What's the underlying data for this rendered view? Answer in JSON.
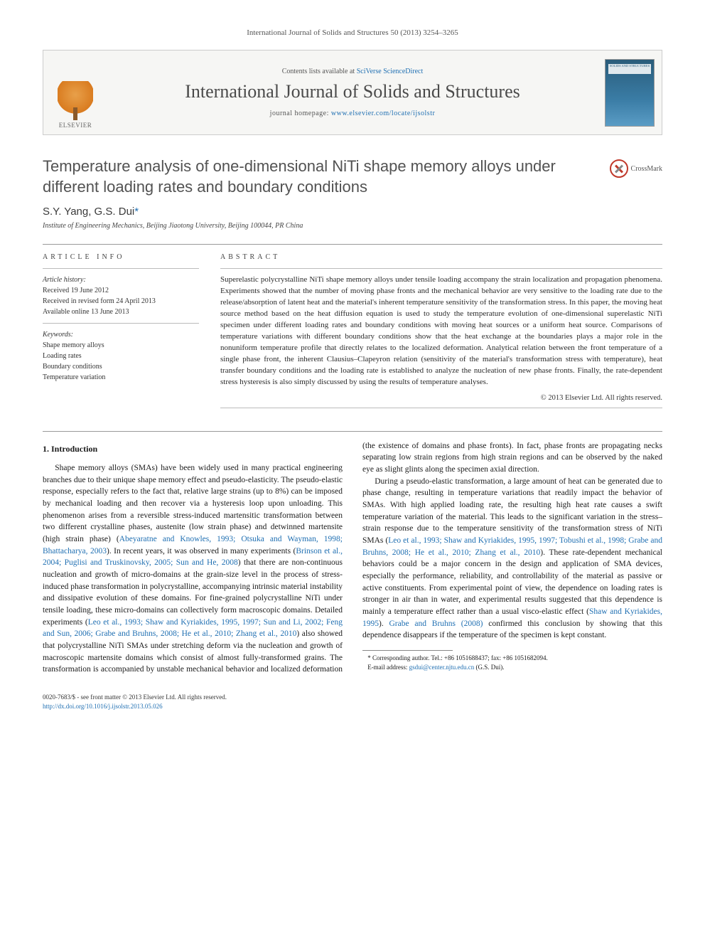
{
  "header": {
    "citation": "International Journal of Solids and Structures 50 (2013) 3254–3265"
  },
  "banner": {
    "contents_prefix": "Contents lists available at ",
    "contents_link": "SciVerse ScienceDirect",
    "journal": "International Journal of Solids and Structures",
    "homepage_prefix": "journal homepage: ",
    "homepage_url": "www.elsevier.com/locate/ijsolstr",
    "publisher": "ELSEVIER",
    "cover_caption": "SOLIDS AND STRUCTURES"
  },
  "title": "Temperature analysis of one-dimensional NiTi shape memory alloys under different loading rates and boundary conditions",
  "crossmark": "CrossMark",
  "authors": "S.Y. Yang, G.S. Dui",
  "corr_marker": "*",
  "affiliation": "Institute of Engineering Mechanics, Beijing Jiaotong University, Beijing 100044, PR China",
  "info": {
    "heading": "ARTICLE INFO",
    "history_label": "Article history:",
    "received": "Received 19 June 2012",
    "revised": "Received in revised form 24 April 2013",
    "online": "Available online 13 June 2013",
    "keywords_label": "Keywords:",
    "keywords": [
      "Shape memory alloys",
      "Loading rates",
      "Boundary conditions",
      "Temperature variation"
    ]
  },
  "abstract": {
    "heading": "ABSTRACT",
    "text": "Superelastic polycrystalline NiTi shape memory alloys under tensile loading accompany the strain localization and propagation phenomena. Experiments showed that the number of moving phase fronts and the mechanical behavior are very sensitive to the loading rate due to the release/absorption of latent heat and the material's inherent temperature sensitivity of the transformation stress. In this paper, the moving heat source method based on the heat diffusion equation is used to study the temperature evolution of one-dimensional superelastic NiTi specimen under different loading rates and boundary conditions with moving heat sources or a uniform heat source. Comparisons of temperature variations with different boundary conditions show that the heat exchange at the boundaries plays a major role in the nonuniform temperature profile that directly relates to the localized deformation. Analytical relation between the front temperature of a single phase front, the inherent Clausius–Clapeyron relation (sensitivity of the material's transformation stress with temperature), heat transfer boundary conditions and the loading rate is established to analyze the nucleation of new phase fronts. Finally, the rate-dependent stress hysteresis is also simply discussed by using the results of temperature analyses.",
    "copyright": "© 2013 Elsevier Ltd. All rights reserved."
  },
  "section1": {
    "heading": "1. Introduction",
    "p1a": "Shape memory alloys (SMAs) have been widely used in many practical engineering branches due to their unique shape memory effect and pseudo-elasticity. The pseudo-elastic response, especially refers to the fact that, relative large strains (up to 8%) can be imposed by mechanical loading and then recover via a hysteresis loop upon unloading. This phenomenon arises from a reversible stress-induced martensitic transformation between two different crystalline phases, austenite (low strain phase) and detwinned martensite (high strain phase) (",
    "ref1": "Abeyaratne and Knowles, 1993; Otsuka and Wayman, 1998; Bhattacharya, 2003",
    "p1b": "). In recent years, it was observed in many experiments (",
    "ref2": "Brinson et al., 2004; Puglisi and Truskinovsky, 2005; Sun and He, 2008",
    "p1c": ") that there are non-continuous nucleation and growth of micro-domains at the grain-size level in the process of stress-induced phase transformation in polycrystalline, accompanying intrinsic material instability and dissipative evolution of these domains. For fine-grained polycrystalline NiTi under tensile loading, these micro-domains can collectively form macroscopic domains. Detailed experiments (",
    "ref3": "Leo et al., 1993; Shaw and Kyriakides, 1995, 1997; Sun and Li, 2002; Feng and Sun, 2006; Grabe and Bruhns, 2008; He et al., 2010; Zhang et al., 2010",
    "p1d": ") also showed that polycrystalline NiTi SMAs under ",
    "p2": "stretching deform via the nucleation and growth of macroscopic martensite domains which consist of almost fully-transformed grains. The transformation is accompanied by unstable mechanical behavior and localized deformation (the existence of domains and phase fronts). In fact, phase fronts are propagating necks separating low strain regions from high strain regions and can be observed by the naked eye as slight glints along the specimen axial direction.",
    "p3a": "During a pseudo-elastic transformation, a large amount of heat can be generated due to phase change, resulting in temperature variations that readily impact the behavior of SMAs. With high applied loading rate, the resulting high heat rate causes a swift temperature variation of the material. This leads to the significant variation in the stress–strain response due to the temperature sensitivity of the transformation stress of NiTi SMAs (",
    "ref4": "Leo et al., 1993; Shaw and Kyriakides, 1995, 1997; Tobushi et al., 1998; Grabe and Bruhns, 2008; He et al., 2010; Zhang et al., 2010",
    "p3b": "). These rate-dependent mechanical behaviors could be a major concern in the design and application of SMA devices, especially the performance, reliability, and controllability of the material as passive or active constituents. From experimental point of view, the dependence on loading rates is stronger in air than in water, and experimental results suggested that this dependence is mainly a temperature effect rather than a usual visco-elastic effect (",
    "ref5": "Shaw and Kyriakides, 1995",
    "p3c": "). ",
    "ref6": "Grabe and Bruhns (2008)",
    "p3d": " confirmed this conclusion by showing that this dependence disappears if the temperature of the specimen is kept constant."
  },
  "footnote": {
    "corr": "* Corresponding author. Tel.: +86 1051688437; fax: +86 1051682094.",
    "email_label": "E-mail address: ",
    "email": "gsdui@center.njtu.edu.cn",
    "email_paren": " (G.S. Dui)."
  },
  "footer": {
    "issn": "0020-7683/$ - see front matter © 2013 Elsevier Ltd. All rights reserved.",
    "doi": "http://dx.doi.org/10.1016/j.ijsolstr.2013.05.026"
  }
}
